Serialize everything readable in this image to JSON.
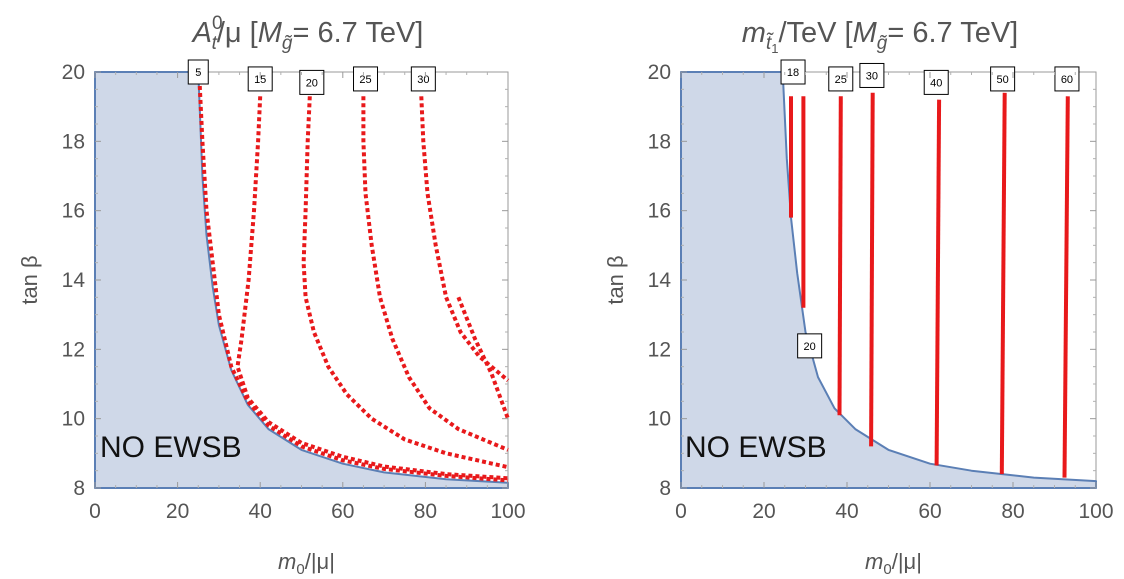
{
  "chart_data": [
    {
      "type": "contour",
      "title": "A_t^0/μ [M_g̃= 6.7 TeV]",
      "title_parts": {
        "main": "A",
        "sub": "t",
        "sup": "0",
        "rest": "/μ [",
        "m": "M",
        "msub": "g̃",
        "tail": "= 6.7 TeV]"
      },
      "xlabel": "m_0/|μ|",
      "xlabel_parts": {
        "main": "m",
        "sub": "0",
        "rest": "/|μ|"
      },
      "ylabel": "tan β",
      "xlim": [
        0,
        100
      ],
      "ylim": [
        8,
        20
      ],
      "xticks": [
        0,
        20,
        40,
        60,
        80,
        100
      ],
      "yticks": [
        8,
        10,
        12,
        14,
        16,
        18,
        20
      ],
      "region_label": "NO EWSB",
      "region_color": "#cfd8e8",
      "boundary_color": "#5b7fb5",
      "contour_color": "#e8191b",
      "contour_style": "dashed",
      "boundary": [
        [
          0,
          8
        ],
        [
          0,
          20
        ],
        [
          25,
          20
        ],
        [
          26,
          17
        ],
        [
          27,
          15.3
        ],
        [
          28.5,
          13.8
        ],
        [
          30,
          12.7
        ],
        [
          33,
          11.4
        ],
        [
          37,
          10.4
        ],
        [
          42,
          9.7
        ],
        [
          50,
          9.1
        ],
        [
          60,
          8.7
        ],
        [
          70,
          8.45
        ],
        [
          85,
          8.25
        ],
        [
          100,
          8.15
        ],
        [
          100,
          8
        ],
        [
          0,
          8
        ]
      ],
      "contours": [
        {
          "label": "5",
          "points": [
            [
              25.2,
              20
            ],
            [
              26,
              18
            ],
            [
              27,
              16
            ],
            [
              28.5,
              14.5
            ],
            [
              30,
              13
            ],
            [
              33,
              11.5
            ],
            [
              37,
              10.5
            ],
            [
              42,
              9.8
            ],
            [
              50,
              9.2
            ],
            [
              60,
              8.8
            ],
            [
              70,
              8.55
            ],
            [
              85,
              8.35
            ],
            [
              100,
              8.22
            ]
          ]
        },
        {
          "label": "15",
          "points": [
            [
              40,
              19.3
            ],
            [
              39.5,
              18
            ],
            [
              38.5,
              16
            ],
            [
              37.2,
              14
            ],
            [
              35.5,
              12.3
            ],
            [
              34.5,
              11.5
            ],
            [
              37,
              10.6
            ],
            [
              42,
              9.9
            ],
            [
              50,
              9.3
            ],
            [
              60,
              8.9
            ],
            [
              70,
              8.62
            ],
            [
              85,
              8.4
            ],
            [
              100,
              8.28
            ]
          ]
        },
        {
          "label": "20",
          "points": [
            [
              52,
              19.3
            ],
            [
              51.5,
              18
            ],
            [
              51,
              16
            ],
            [
              50.5,
              14.5
            ],
            [
              51,
              13.5
            ],
            [
              53,
              12.5
            ],
            [
              56.5,
              11.5
            ],
            [
              61,
              10.7
            ],
            [
              67,
              10
            ],
            [
              75,
              9.4
            ],
            [
              85,
              9
            ],
            [
              100,
              8.6
            ]
          ]
        },
        {
          "label": "25",
          "points": [
            [
              65,
              19.3
            ],
            [
              65,
              18
            ],
            [
              65.5,
              16.5
            ],
            [
              67,
              15
            ],
            [
              69,
              13.5
            ],
            [
              72,
              12.3
            ],
            [
              76,
              11.2
            ],
            [
              81,
              10.3
            ],
            [
              88,
              9.7
            ],
            [
              100,
              9.1
            ]
          ]
        },
        {
          "label": "30",
          "points": [
            [
              79,
              19.3
            ],
            [
              79.5,
              18
            ],
            [
              80.5,
              16.5
            ],
            [
              82.5,
              15
            ],
            [
              85,
              13.5
            ],
            [
              88.5,
              12.5
            ],
            [
              93,
              11.8
            ],
            [
              100,
              11.1
            ]
          ]
        },
        {
          "label": "",
          "points": [
            [
              88,
              13.5
            ],
            [
              92,
              12.3
            ],
            [
              96,
              11.3
            ],
            [
              100,
              10
            ]
          ]
        }
      ],
      "contour_labels": [
        {
          "text": "5",
          "x": 25,
          "y": 20
        },
        {
          "text": "15",
          "x": 40,
          "y": 19.8
        },
        {
          "text": "20",
          "x": 52.5,
          "y": 19.7
        },
        {
          "text": "25",
          "x": 65.5,
          "y": 19.8
        },
        {
          "text": "30",
          "x": 79.5,
          "y": 19.8
        }
      ]
    },
    {
      "type": "contour",
      "title": "m_t̃1/TeV [M_g̃= 6.7 TeV]",
      "title_parts": {
        "main": "m",
        "sub": "t̃",
        "subsub": "1",
        "rest": "/TeV",
        "gap": "    [",
        "m": "M",
        "msub": "g̃",
        "tail": "= 6.7 TeV]"
      },
      "xlabel": "m_0/|μ|",
      "xlabel_parts": {
        "main": "m",
        "sub": "0",
        "rest": "/|μ|"
      },
      "ylabel": "tan β",
      "xlim": [
        0,
        100
      ],
      "ylim": [
        8,
        20
      ],
      "xticks": [
        0,
        20,
        40,
        60,
        80,
        100
      ],
      "yticks": [
        8,
        10,
        12,
        14,
        16,
        18,
        20
      ],
      "region_label": "NO EWSB",
      "region_color": "#cfd8e8",
      "boundary_color": "#5b7fb5",
      "contour_color": "#e8191b",
      "contour_style": "solid",
      "boundary": [
        [
          0,
          8
        ],
        [
          0,
          20
        ],
        [
          24.5,
          20
        ],
        [
          25.5,
          17.5
        ],
        [
          26.5,
          15.8
        ],
        [
          28,
          14.2
        ],
        [
          30,
          12.5
        ],
        [
          33,
          11.2
        ],
        [
          37,
          10.3
        ],
        [
          42,
          9.7
        ],
        [
          50,
          9.1
        ],
        [
          60,
          8.7
        ],
        [
          70,
          8.5
        ],
        [
          85,
          8.3
        ],
        [
          100,
          8.2
        ],
        [
          100,
          8
        ],
        [
          0,
          8
        ]
      ],
      "contours": [
        {
          "label": "18",
          "points": [
            [
              26.5,
              19.3
            ],
            [
              26.5,
              15.8
            ]
          ]
        },
        {
          "label": "20",
          "points": [
            [
              29.5,
              19.3
            ],
            [
              29.5,
              13.2
            ]
          ]
        },
        {
          "label": "25",
          "points": [
            [
              38.5,
              19.3
            ],
            [
              38.2,
              10.1
            ]
          ]
        },
        {
          "label": "30",
          "points": [
            [
              46.2,
              19.4
            ],
            [
              45.8,
              9.2
            ]
          ]
        },
        {
          "label": "40",
          "points": [
            [
              62.2,
              19.2
            ],
            [
              61.6,
              8.65
            ]
          ]
        },
        {
          "label": "50",
          "points": [
            [
              78,
              19.4
            ],
            [
              77.3,
              8.4
            ]
          ]
        },
        {
          "label": "60",
          "points": [
            [
              93.2,
              19.3
            ],
            [
              92.4,
              8.3
            ]
          ]
        }
      ],
      "contour_labels": [
        {
          "text": "18",
          "x": 27,
          "y": 20
        },
        {
          "text": "25",
          "x": 38.5,
          "y": 19.8
        },
        {
          "text": "30",
          "x": 46,
          "y": 19.9
        },
        {
          "text": "40",
          "x": 61.5,
          "y": 19.7
        },
        {
          "text": "50",
          "x": 77.5,
          "y": 19.8
        },
        {
          "text": "60",
          "x": 93,
          "y": 19.8
        },
        {
          "text": "20",
          "x": 31,
          "y": 12.1
        }
      ]
    }
  ]
}
